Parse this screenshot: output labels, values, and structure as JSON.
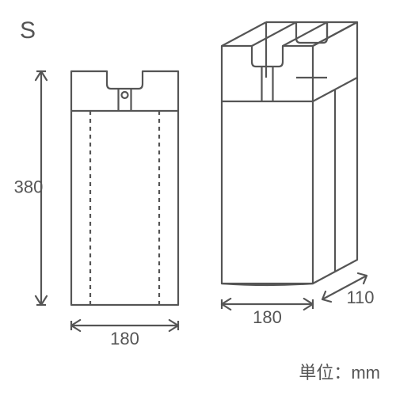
{
  "size_label": "S",
  "unit_label": "単位：mm",
  "dims": {
    "height": "380",
    "flat_width": "180",
    "depth_width": "180",
    "depth": "110"
  },
  "colors": {
    "stroke": "#555555",
    "text": "#555555",
    "bg": "#ffffff"
  },
  "style": {
    "stroke_width": 2.2,
    "dash": "5,5",
    "fontsize_label": 30,
    "fontsize_dim": 22,
    "fontsize_unit": 22
  }
}
